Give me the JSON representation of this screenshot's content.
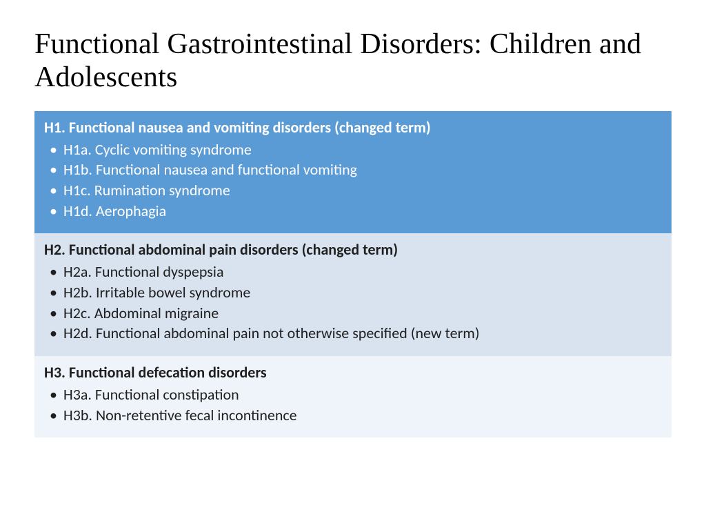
{
  "title": "Functional Gastrointestinal Disorders: Children and Adolescents",
  "colors": {
    "section1_bg": "#5b9bd5",
    "section1_text": "#ffffff",
    "section2_bg": "#d9e3f0",
    "section2_text": "#1f1f1f",
    "section3_bg": "#eff4fa",
    "section3_text": "#1f1f1f",
    "title_color": "#000000",
    "page_bg": "#ffffff"
  },
  "typography": {
    "title_family": "Times New Roman",
    "title_size_pt": 32,
    "body_family": "Calibri",
    "header_size_pt": 17,
    "item_size_pt": 17,
    "header_weight": 700,
    "item_weight": 400
  },
  "sections": [
    {
      "header": "H1. Functional nausea and vomiting disorders (changed term)",
      "items": [
        "H1a. Cyclic vomiting syndrome",
        "H1b. Functional nausea and functional vomiting",
        "H1c. Rumination syndrome",
        "H1d. Aerophagia"
      ]
    },
    {
      "header": "H2. Functional abdominal pain disorders (changed  term)",
      "items": [
        "H2a. Functional dyspepsia",
        "H2b. Irritable bowel syndrome",
        "H2c. Abdominal migraine",
        "H2d. Functional abdominal pain not otherwise specified (new term)"
      ]
    },
    {
      "header": "H3. Functional defecation disorders",
      "items": [
        "H3a. Functional constipation",
        "H3b. Non-retentive fecal incontinence"
      ]
    }
  ]
}
